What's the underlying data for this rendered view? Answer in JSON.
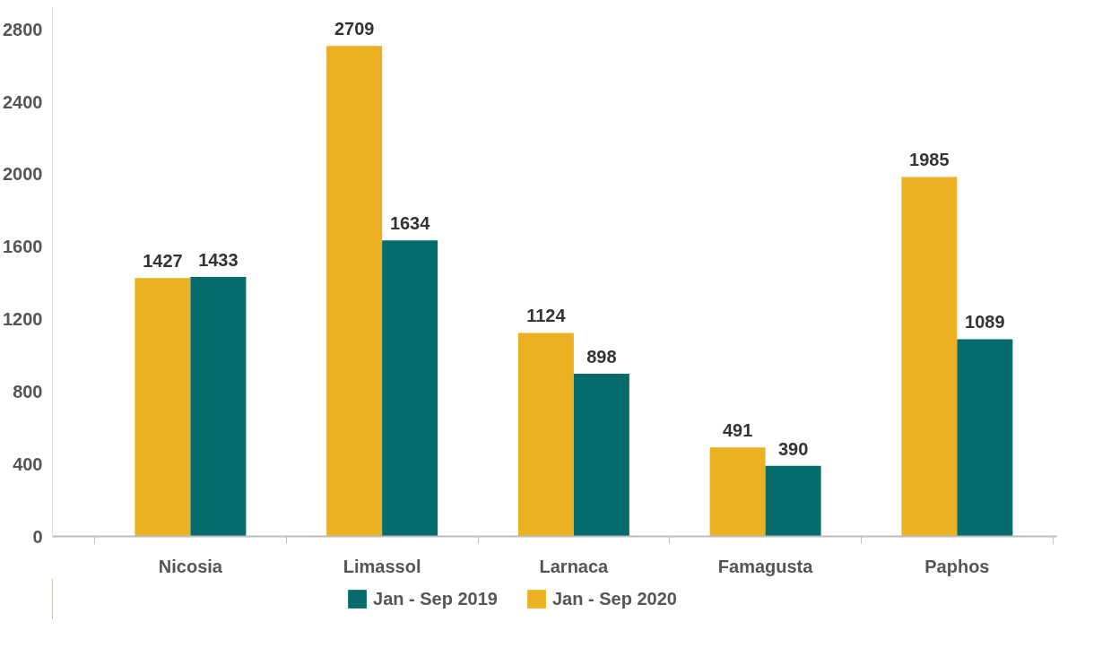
{
  "chart_data": {
    "type": "bar",
    "categories": [
      "Nicosia",
      "Limassol",
      "Larnaca",
      "Famagusta",
      "Paphos"
    ],
    "series": [
      {
        "name": "Jan - Sep 2020",
        "color": "#ebb122",
        "values": [
          1427,
          2709,
          1124,
          491,
          1985
        ]
      },
      {
        "name": "Jan - Sep 2019",
        "color": "#056b6c",
        "values": [
          1433,
          1634,
          898,
          390,
          1089
        ]
      }
    ],
    "ylim": [
      0,
      2920
    ],
    "yticks": [
      0,
      400,
      800,
      1200,
      1600,
      2000,
      2400,
      2800
    ],
    "grid": false,
    "legend": "bottom",
    "data_labels": true
  }
}
